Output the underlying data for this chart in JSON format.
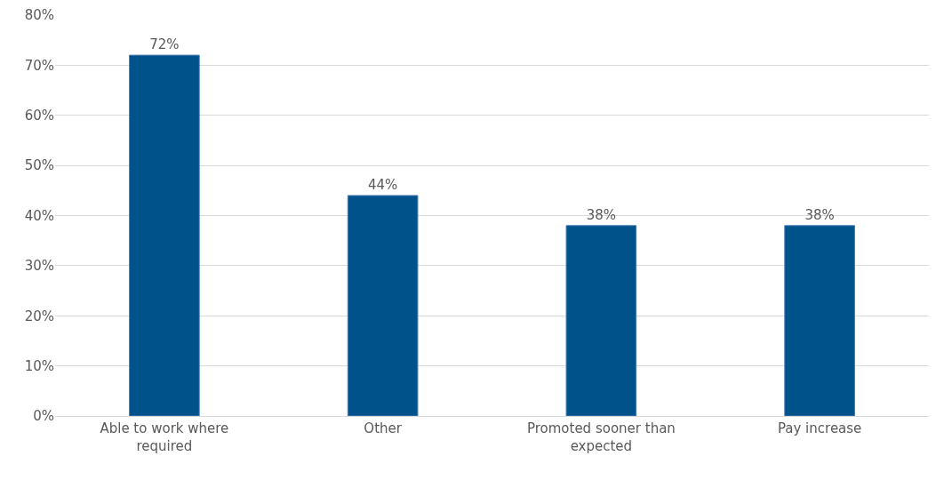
{
  "chart_data": {
    "type": "bar",
    "categories": [
      "Able to work where required",
      "Other",
      "Promoted sooner than expected",
      "Pay increase"
    ],
    "values": [
      72,
      44,
      38,
      38
    ],
    "value_labels": [
      "72%",
      "44%",
      "38%",
      "38%"
    ],
    "color": "#00528a",
    "ylim": [
      0,
      80
    ],
    "yticks": [
      {
        "value": 0,
        "label": "0%"
      },
      {
        "value": 10,
        "label": "10%"
      },
      {
        "value": 20,
        "label": "20%"
      },
      {
        "value": 30,
        "label": "30%"
      },
      {
        "value": 40,
        "label": "40%"
      },
      {
        "value": 50,
        "label": "50%"
      },
      {
        "value": 60,
        "label": "60%"
      },
      {
        "value": 70,
        "label": "70%"
      },
      {
        "value": 80,
        "label": "80%"
      }
    ],
    "grid": "y"
  }
}
